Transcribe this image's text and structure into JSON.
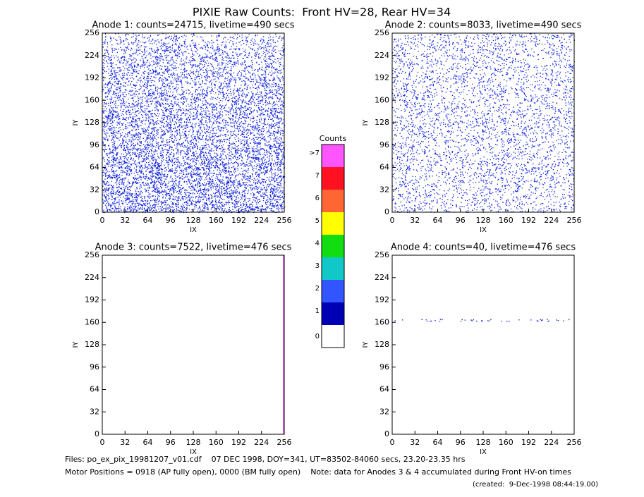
{
  "title": "PIXIE Raw Counts:  Front HV=28, Rear HV=34",
  "chart_data": [
    {
      "type": "heatmap",
      "title": "Anode 1: counts=24715, livetime=490 secs",
      "xlabel": "IX",
      "ylabel": "IY",
      "xlim": [
        0,
        256
      ],
      "xticks": [
        0,
        32,
        64,
        96,
        128,
        160,
        192,
        224,
        256
      ],
      "ylim": [
        0,
        256
      ],
      "yticks": [
        0,
        32,
        64,
        96,
        128,
        160,
        192,
        224,
        256
      ]
    },
    {
      "type": "heatmap",
      "title": "Anode 2: counts=8033, livetime=490 secs",
      "xlabel": "IX",
      "ylabel": "IY",
      "xlim": [
        0,
        256
      ],
      "xticks": [
        0,
        32,
        64,
        96,
        128,
        160,
        192,
        224,
        256
      ],
      "ylim": [
        0,
        256
      ],
      "yticks": [
        0,
        32,
        64,
        96,
        128,
        160,
        192,
        224,
        256
      ]
    },
    {
      "type": "heatmap",
      "title": "Anode 3: counts=7522, livetime=476 secs",
      "xlabel": "IX",
      "ylabel": "IY",
      "xlim": [
        0,
        256
      ],
      "xticks": [
        0,
        32,
        64,
        96,
        128,
        160,
        192,
        224,
        256
      ],
      "ylim": [
        0,
        256
      ],
      "yticks": [
        0,
        32,
        64,
        96,
        128,
        160,
        192,
        224,
        256
      ]
    },
    {
      "type": "heatmap",
      "title": "Anode 4: counts=40, livetime=476 secs",
      "xlabel": "IX",
      "ylabel": "IY",
      "xlim": [
        0,
        256
      ],
      "xticks": [
        0,
        32,
        64,
        96,
        128,
        160,
        192,
        224,
        256
      ],
      "ylim": [
        0,
        256
      ],
      "yticks": [
        0,
        32,
        64,
        96,
        128,
        160,
        192,
        224,
        256
      ]
    }
  ],
  "colorbar": {
    "title": "Counts",
    "labels": [
      "0",
      "1",
      "2",
      "3",
      "4",
      "5",
      "6",
      "7",
      ">7"
    ],
    "colors": [
      "#ffffff",
      "#0000b4",
      "#3355ff",
      "#11c8c8",
      "#11dd11",
      "#ffff00",
      "#ff6633",
      "#ff1122",
      "#ff55ff"
    ]
  },
  "footer": [
    "Files: po_ex_pix_19981207_v01.cdf    07 DEC 1998, DOY=341, UT=83502-84060 secs, 23.20-23.35 hrs",
    "Motor Positions = 0918 (AP fully open), 0000 (BM fully open)    Note: data for Anodes 3 & 4 accumulated during Front HV-on times",
    "(created:  9-Dec-1998 08:44:19.00)"
  ]
}
